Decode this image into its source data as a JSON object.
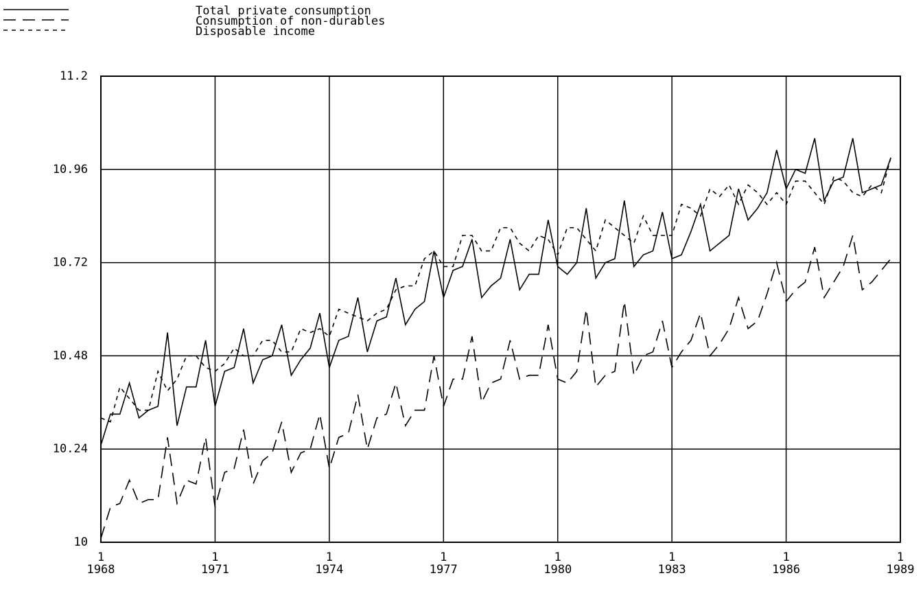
{
  "chart_data": {
    "type": "line",
    "x": [
      1968,
      1968.25,
      1968.5,
      1968.75,
      1969,
      1969.25,
      1969.5,
      1969.75,
      1970,
      1970.25,
      1970.5,
      1970.75,
      1971,
      1971.25,
      1971.5,
      1971.75,
      1972,
      1972.25,
      1972.5,
      1972.75,
      1973,
      1973.25,
      1973.5,
      1973.75,
      1974,
      1974.25,
      1974.5,
      1974.75,
      1975,
      1975.25,
      1975.5,
      1975.75,
      1976,
      1976.25,
      1976.5,
      1976.75,
      1977,
      1977.25,
      1977.5,
      1977.75,
      1978,
      1978.25,
      1978.5,
      1978.75,
      1979,
      1979.25,
      1979.5,
      1979.75,
      1980,
      1980.25,
      1980.5,
      1980.75,
      1981,
      1981.25,
      1981.5,
      1981.75,
      1982,
      1982.25,
      1982.5,
      1982.75,
      1983,
      1983.25,
      1983.5,
      1983.75,
      1984,
      1984.25,
      1984.5,
      1984.75,
      1985,
      1985.25,
      1985.5,
      1985.75,
      1986,
      1986.25,
      1986.5,
      1986.75,
      1987,
      1987.25,
      1987.5,
      1987.75,
      1988,
      1988.25,
      1988.5,
      1988.75
    ],
    "series": [
      {
        "name": "Total private consumption",
        "color": "#000000",
        "dash": "solid",
        "values": [
          10.25,
          10.33,
          10.33,
          10.41,
          10.32,
          10.34,
          10.35,
          10.54,
          10.3,
          10.4,
          10.4,
          10.52,
          10.35,
          10.44,
          10.45,
          10.55,
          10.41,
          10.47,
          10.48,
          10.56,
          10.43,
          10.47,
          10.5,
          10.59,
          10.45,
          10.52,
          10.53,
          10.63,
          10.49,
          10.57,
          10.58,
          10.68,
          10.56,
          10.6,
          10.62,
          10.75,
          10.63,
          10.7,
          10.71,
          10.78,
          10.63,
          10.66,
          10.68,
          10.78,
          10.65,
          10.69,
          10.69,
          10.83,
          10.71,
          10.69,
          10.72,
          10.86,
          10.68,
          10.72,
          10.73,
          10.88,
          10.71,
          10.74,
          10.75,
          10.85,
          10.73,
          10.74,
          10.8,
          10.87,
          10.75,
          10.77,
          10.79,
          10.91,
          10.83,
          10.86,
          10.9,
          11.01,
          10.91,
          10.96,
          10.95,
          11.04,
          10.88,
          10.93,
          10.94,
          11.04,
          10.9,
          10.91,
          10.92,
          10.99
        ]
      },
      {
        "name": "Consumption of non-durables",
        "color": "#000000",
        "dash": "long",
        "values": [
          10.01,
          10.09,
          10.1,
          10.16,
          10.1,
          10.11,
          10.11,
          10.27,
          10.1,
          10.16,
          10.15,
          10.27,
          10.09,
          10.18,
          10.19,
          10.29,
          10.15,
          10.21,
          10.23,
          10.31,
          10.18,
          10.23,
          10.24,
          10.33,
          10.19,
          10.27,
          10.28,
          10.38,
          10.24,
          10.32,
          10.33,
          10.41,
          10.3,
          10.34,
          10.34,
          10.48,
          10.35,
          10.42,
          10.42,
          10.53,
          10.36,
          10.41,
          10.42,
          10.52,
          10.42,
          10.43,
          10.43,
          10.56,
          10.42,
          10.41,
          10.44,
          10.6,
          10.4,
          10.43,
          10.44,
          10.62,
          10.43,
          10.48,
          10.49,
          10.57,
          10.45,
          10.49,
          10.52,
          10.59,
          10.48,
          10.51,
          10.55,
          10.63,
          10.55,
          10.57,
          10.64,
          10.72,
          10.62,
          10.65,
          10.67,
          10.76,
          10.63,
          10.67,
          10.71,
          10.79,
          10.65,
          10.67,
          10.7,
          10.73
        ]
      },
      {
        "name": "Disposable income",
        "color": "#000000",
        "dash": "short",
        "values": [
          10.32,
          10.31,
          10.4,
          10.37,
          10.34,
          10.34,
          10.44,
          10.39,
          10.42,
          10.48,
          10.48,
          10.45,
          10.44,
          10.46,
          10.5,
          10.48,
          10.48,
          10.52,
          10.52,
          10.49,
          10.49,
          10.55,
          10.54,
          10.55,
          10.53,
          10.6,
          10.59,
          10.58,
          10.57,
          10.59,
          10.6,
          10.65,
          10.66,
          10.66,
          10.73,
          10.75,
          10.71,
          10.71,
          10.79,
          10.79,
          10.75,
          10.75,
          10.81,
          10.81,
          10.77,
          10.75,
          10.79,
          10.78,
          10.74,
          10.81,
          10.81,
          10.78,
          10.75,
          10.83,
          10.81,
          10.79,
          10.77,
          10.84,
          10.79,
          10.79,
          10.79,
          10.87,
          10.86,
          10.84,
          10.91,
          10.89,
          10.92,
          10.87,
          10.92,
          10.9,
          10.87,
          10.9,
          10.87,
          10.93,
          10.93,
          10.9,
          10.87,
          10.94,
          10.93,
          10.9,
          10.89,
          10.92,
          10.9,
          10.99
        ]
      }
    ],
    "xlim": [
      1968,
      1989
    ],
    "xticks": [
      1968,
      1971,
      1974,
      1977,
      1980,
      1983,
      1986,
      1989
    ],
    "xtick_period": "1",
    "ylim": [
      10,
      11.2
    ],
    "yticks": [
      10,
      10.24,
      10.48,
      10.72,
      10.96,
      11.2
    ],
    "grid": true
  }
}
